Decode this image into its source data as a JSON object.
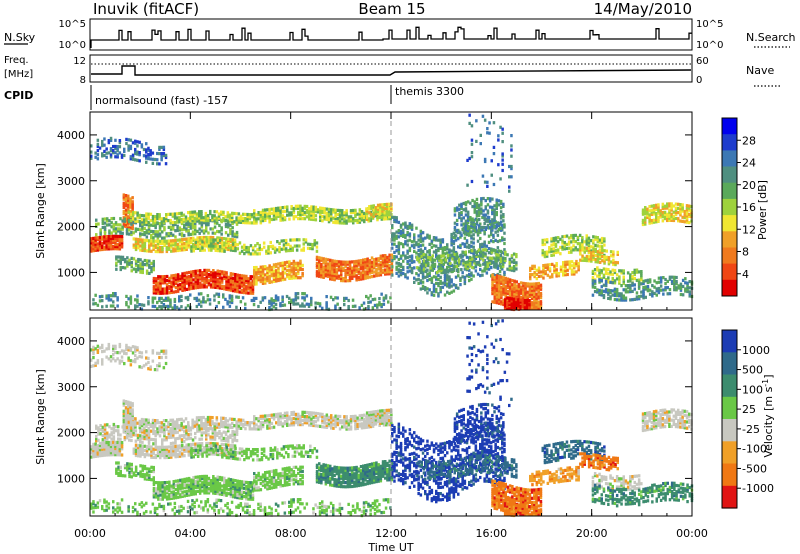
{
  "header": {
    "site": "Inuvik (fitACF)",
    "beam": "Beam 15",
    "date": "14/May/2010"
  },
  "top_panels": {
    "sky_label": "N.Sky",
    "sky_ticks": [
      "10^5",
      "10^0"
    ],
    "search_label": "N.Search",
    "freq_label_1": "Freq.",
    "freq_label_2": "[MHz]",
    "freq_ticks": [
      "12",
      "8"
    ],
    "nave_label": "Nave",
    "nave_ticks": [
      "60",
      "0"
    ],
    "cpid_label": "CPID",
    "cpid_segments": [
      {
        "name": "normalsound (fast) -157",
        "start_hour": 0
      },
      {
        "name": "themis 3300",
        "start_hour": 12
      }
    ]
  },
  "chart_data": [
    {
      "type": "heatmap",
      "title": "",
      "xlabel": "Time UT",
      "ylabel": "Slant Range [km]",
      "x_ticks": [
        "00:00",
        "04:00",
        "08:00",
        "12:00",
        "16:00",
        "20:00",
        "00:00"
      ],
      "x_range_hours": [
        0,
        24
      ],
      "y_range_km": [
        180,
        4500
      ],
      "y_ticks": [
        1000,
        2000,
        3000,
        4000
      ],
      "colorbar": {
        "label": "Power [dB]",
        "ticks": [
          "28",
          "24",
          "20",
          "16",
          "12",
          "8",
          "4"
        ],
        "colors": [
          "#0000ee",
          "#1e3ccd",
          "#3c78b4",
          "#4f8f80",
          "#5aa95a",
          "#9ed23c",
          "#f0e632",
          "#f0a028",
          "#f07a1e",
          "#f04614",
          "#e10000"
        ]
      }
    },
    {
      "type": "heatmap",
      "title": "",
      "xlabel": "Time UT",
      "ylabel": "Slant Range [km]",
      "x_ticks": [
        "00:00",
        "04:00",
        "08:00",
        "12:00",
        "16:00",
        "20:00",
        "00:00"
      ],
      "x_range_hours": [
        0,
        24
      ],
      "y_range_km": [
        180,
        4500
      ],
      "y_ticks": [
        1000,
        2000,
        3000,
        4000
      ],
      "colorbar": {
        "label": "Velocity [m s^-1]",
        "ticks": [
          "1000",
          "500",
          "100",
          "25",
          "-25",
          "-100",
          "-500",
          "-1000"
        ],
        "colors": [
          "#1c3cb4",
          "#2f6a8a",
          "#3c8c6e",
          "#6ac846",
          "#c8c8c0",
          "#f0a028",
          "#f07814",
          "#e11414"
        ]
      }
    }
  ]
}
